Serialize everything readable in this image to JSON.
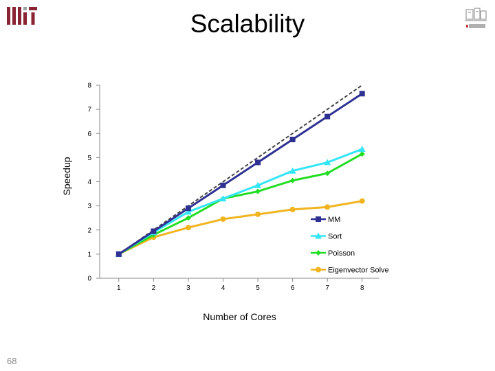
{
  "slide": {
    "title": "Scalability",
    "number": "68"
  },
  "logos": {
    "left": "mit-logo",
    "right": "csail-logo"
  },
  "chart_data": {
    "type": "line",
    "x": [
      1,
      2,
      3,
      4,
      5,
      6,
      7,
      8
    ],
    "xlabel": "Number of Cores",
    "ylabel": "Speedup",
    "ylim": [
      0,
      8
    ],
    "yticks": [
      0,
      1,
      2,
      3,
      4,
      5,
      6,
      7,
      8
    ],
    "grid": false,
    "legend": "bottom-right",
    "reference_line": {
      "from": [
        1,
        1
      ],
      "to": [
        8,
        8
      ],
      "style": "dashed",
      "color": "#444444"
    },
    "series": [
      {
        "name": "MM",
        "color": "#2e3192",
        "marker": "square",
        "values": [
          1.0,
          1.95,
          2.9,
          3.85,
          4.8,
          5.75,
          6.7,
          7.65
        ]
      },
      {
        "name": "Sort",
        "color": "#33e5f5",
        "marker": "triangle",
        "values": [
          1.0,
          1.9,
          2.75,
          3.3,
          3.85,
          4.45,
          4.8,
          5.35
        ]
      },
      {
        "name": "Poisson",
        "color": "#22dd22",
        "marker": "diamond",
        "values": [
          1.0,
          1.8,
          2.5,
          3.3,
          3.6,
          4.05,
          4.35,
          5.15
        ]
      },
      {
        "name": "Eigenvector Solve",
        "color": "#f0b41e",
        "marker": "circle",
        "values": [
          1.0,
          1.7,
          2.1,
          2.45,
          2.65,
          2.85,
          2.95,
          3.2
        ]
      }
    ]
  }
}
